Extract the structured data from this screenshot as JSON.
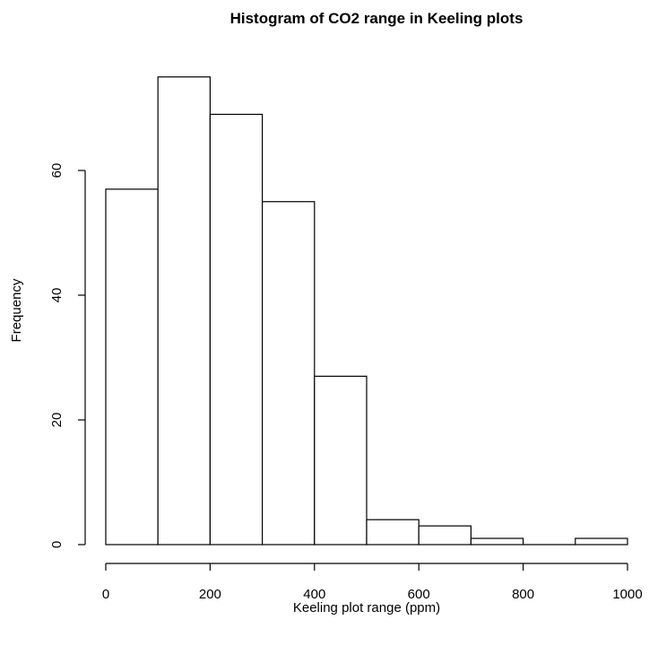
{
  "chart_data": {
    "type": "bar",
    "title": "Histogram of CO2 range in Keeling plots",
    "xlabel": "Keeling plot range (ppm)",
    "ylabel": "Frequency",
    "bins": [
      {
        "start": 0,
        "end": 100,
        "count": 57
      },
      {
        "start": 100,
        "end": 200,
        "count": 75
      },
      {
        "start": 200,
        "end": 300,
        "count": 69
      },
      {
        "start": 300,
        "end": 400,
        "count": 55
      },
      {
        "start": 400,
        "end": 500,
        "count": 27
      },
      {
        "start": 500,
        "end": 600,
        "count": 4
      },
      {
        "start": 600,
        "end": 700,
        "count": 3
      },
      {
        "start": 700,
        "end": 800,
        "count": 1
      },
      {
        "start": 800,
        "end": 900,
        "count": 0
      },
      {
        "start": 900,
        "end": 1000,
        "count": 1
      }
    ],
    "xticks": [
      0,
      200,
      400,
      600,
      800,
      1000
    ],
    "yticks": [
      0,
      20,
      40,
      60
    ],
    "xlim": [
      0,
      1000
    ],
    "ylim": [
      0,
      75
    ],
    "grid": false,
    "legend": "none"
  }
}
